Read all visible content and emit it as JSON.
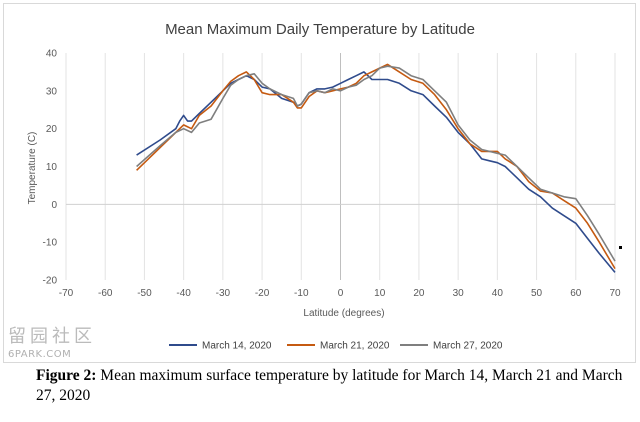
{
  "chart_data": {
    "type": "line",
    "title": "Mean Maximum Daily Temperature by Latitude",
    "xlabel": "Latitude (degrees)",
    "ylabel": "Temperature (C)",
    "xlim": [
      -70,
      70
    ],
    "ylim": [
      -20,
      40
    ],
    "xticks": [
      -70,
      -60,
      -50,
      -40,
      -30,
      -20,
      -10,
      0,
      10,
      20,
      30,
      40,
      50,
      60,
      70
    ],
    "yticks": [
      -20,
      -10,
      0,
      10,
      20,
      30,
      40
    ],
    "grid": "vertical",
    "legend_position": "bottom",
    "series": [
      {
        "name": "March 14, 2020",
        "color": "#2f4b8c",
        "x": [
          -52,
          -46,
          -42,
          -41,
          -40,
          -39,
          -38,
          -36,
          -33,
          -30,
          -28,
          -26,
          -24,
          -22,
          -20,
          -18,
          -15,
          -12,
          -11,
          -10,
          -8,
          -6,
          -4,
          -2,
          0,
          2,
          4,
          6,
          8,
          10,
          12,
          15,
          18,
          21,
          24,
          27,
          30,
          33,
          36,
          38,
          40,
          42,
          45,
          48,
          51,
          54,
          57,
          60,
          63,
          66,
          70
        ],
        "y": [
          13,
          17,
          20,
          22,
          23.5,
          22,
          22,
          24,
          27,
          30,
          32,
          33,
          34,
          33,
          31,
          30.5,
          28,
          27,
          26,
          26.5,
          29.5,
          30.5,
          30.5,
          31,
          32,
          33,
          34,
          35,
          33,
          33,
          33,
          32,
          30,
          29,
          26,
          23,
          19,
          16,
          12,
          11.5,
          11,
          10,
          7,
          4,
          2,
          -1,
          -3,
          -5,
          -9,
          -13,
          -18
        ]
      },
      {
        "name": "March 21, 2020",
        "color": "#c55a11",
        "x": [
          -52,
          -46,
          -42,
          -40,
          -38,
          -36,
          -33,
          -30,
          -28,
          -26,
          -24,
          -22,
          -20,
          -18,
          -15,
          -12,
          -11,
          -10,
          -8,
          -6,
          -4,
          -2,
          0,
          2,
          4,
          6,
          8,
          10,
          12,
          15,
          18,
          21,
          24,
          27,
          30,
          33,
          36,
          38,
          40,
          42,
          45,
          48,
          51,
          54,
          57,
          60,
          63,
          66,
          70
        ],
        "y": [
          9,
          15,
          19,
          21,
          20,
          23.5,
          26,
          30,
          32.5,
          34,
          35,
          33,
          29.5,
          29,
          29,
          27,
          25.5,
          25.5,
          28.5,
          30,
          29.5,
          30,
          30.5,
          31,
          32,
          34,
          35,
          36,
          37,
          35,
          33,
          32,
          29,
          25,
          20,
          16,
          14,
          14,
          14,
          12,
          10,
          6,
          3.5,
          3,
          1,
          -1,
          -5,
          -10,
          -17
        ]
      },
      {
        "name": "March 27, 2020",
        "color": "#7f7f7f",
        "x": [
          -52,
          -46,
          -42,
          -40,
          -38,
          -36,
          -33,
          -30,
          -28,
          -26,
          -24,
          -22,
          -20,
          -18,
          -15,
          -12,
          -11,
          -10,
          -8,
          -6,
          -4,
          -2,
          0,
          2,
          4,
          6,
          8,
          10,
          12,
          15,
          18,
          21,
          24,
          27,
          30,
          33,
          36,
          38,
          40,
          42,
          45,
          48,
          51,
          54,
          57,
          60,
          63,
          66,
          70
        ],
        "y": [
          10,
          15.5,
          19,
          20,
          19,
          21.5,
          22.5,
          28,
          31.5,
          33,
          34,
          34.5,
          32,
          30.5,
          29,
          28,
          26,
          26.5,
          29.5,
          30,
          29.5,
          30.5,
          30,
          31,
          31.5,
          33,
          34,
          36,
          36.5,
          36,
          34,
          33,
          30,
          27,
          21,
          17,
          14.5,
          14,
          13.5,
          13,
          10,
          7,
          4,
          3,
          2,
          1.5,
          -3,
          -8,
          -15
        ]
      }
    ]
  },
  "caption": {
    "label": "Figure 2:",
    "text": " Mean maximum surface temperature by latitude for March 14, March 21 and March 27, 2020"
  },
  "watermark": {
    "glyphs": "留园社区",
    "url": "6PARK.COM"
  }
}
